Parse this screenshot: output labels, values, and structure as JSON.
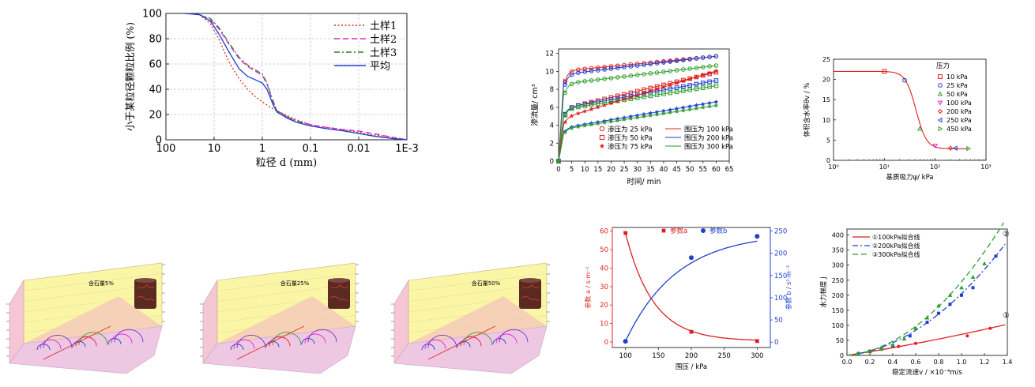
{
  "chart_data": [
    {
      "id": "psd",
      "type": "line",
      "xlabel": "粒径 d (mm)",
      "ylabel": "小于某粒径颗粒比例 (%)",
      "xscale": "log-reversed",
      "xticks": [
        "100",
        "10",
        "1",
        "0.1",
        "0.01",
        "1E-3"
      ],
      "yticks": [
        "0",
        "20",
        "40",
        "60",
        "80",
        "100"
      ],
      "ylim": [
        0,
        100
      ],
      "xlim": [
        100,
        0.001
      ],
      "grid": true,
      "legend_position": "top-right",
      "series": [
        {
          "name": "土样1",
          "style": "dot",
          "color": "#e0301e",
          "x": [
            40,
            20,
            12,
            8,
            5,
            3,
            2,
            1.5,
            1,
            0.7,
            0.5,
            0.3,
            0.2,
            0.1,
            0.05,
            0.02,
            0.01,
            0.005,
            0.002,
            0.001
          ],
          "y": [
            100,
            99,
            92,
            80,
            62,
            48,
            40,
            35,
            30,
            26,
            23,
            19,
            16,
            12,
            10,
            8,
            6,
            4,
            2,
            0
          ]
        },
        {
          "name": "土样2",
          "style": "dash",
          "color": "#e020d8",
          "x": [
            40,
            20,
            12,
            8,
            5,
            3,
            2,
            1.5,
            1,
            0.8,
            0.6,
            0.5,
            0.3,
            0.2,
            0.1,
            0.05,
            0.02,
            0.01,
            0.005,
            0.002,
            0.001
          ],
          "y": [
            100,
            99,
            95,
            88,
            76,
            64,
            58,
            55,
            51,
            44,
            30,
            23,
            18,
            15,
            12,
            10,
            8,
            7,
            5,
            2,
            0
          ]
        },
        {
          "name": "土样3",
          "style": "dashdot",
          "color": "#2e7d32",
          "x": [
            40,
            20,
            12,
            8,
            5,
            3,
            2,
            1.5,
            1,
            0.8,
            0.6,
            0.5,
            0.3,
            0.2,
            0.1,
            0.05,
            0.02,
            0.01,
            0.005,
            0.002,
            0.001
          ],
          "y": [
            100,
            99,
            96,
            89,
            77,
            65,
            59,
            56,
            52,
            45,
            31,
            23,
            18,
            15,
            11,
            9,
            7,
            5,
            3,
            1,
            0
          ]
        },
        {
          "name": "平均",
          "style": "solid",
          "color": "#1f3fd0",
          "x": [
            40,
            20,
            12,
            8,
            5,
            3,
            2,
            1.5,
            1,
            0.8,
            0.6,
            0.5,
            0.3,
            0.2,
            0.1,
            0.05,
            0.02,
            0.01,
            0.005,
            0.002,
            0.001
          ],
          "y": [
            100,
            99,
            94,
            84,
            70,
            56,
            50,
            48,
            45,
            40,
            28,
            22,
            17,
            14,
            11,
            9,
            7,
            5,
            3,
            1,
            0
          ]
        }
      ]
    },
    {
      "id": "seepage",
      "type": "scatter",
      "xlabel": "时间/ min",
      "ylabel": "渗流量/ cm³",
      "xticks": [
        0,
        5,
        10,
        15,
        20,
        25,
        30,
        35,
        40,
        45,
        50,
        55,
        60,
        65
      ],
      "yticks": [
        0,
        2,
        4,
        6,
        8,
        10,
        12
      ],
      "xlim": [
        0,
        65
      ],
      "ylim": [
        0,
        12.5
      ],
      "legend_position": "bottom-right",
      "legend_markers": [
        "渗压为 25 kPa",
        "渗压为 50 kPa",
        "渗压为 75 kPa"
      ],
      "legend_lines": [
        "围压为 100 kPa",
        "围压为 200 kPa",
        "围压为 300 kPa"
      ],
      "series": [
        {
          "color": "#e02020",
          "marker": "circle",
          "a": 9.6,
          "b": 0.4,
          "c": 0.028
        },
        {
          "color": "#1f3fd0",
          "marker": "circle",
          "a": 9.3,
          "b": 0.3,
          "c": 0.035
        },
        {
          "color": "#2e9e2e",
          "marker": "circle",
          "a": 8.2,
          "b": 0.35,
          "c": 0.035
        },
        {
          "color": "#e02020",
          "marker": "square",
          "a": 5.5,
          "b": 0.2,
          "c": 0.07
        },
        {
          "color": "#1f3fd0",
          "marker": "square",
          "a": 5.6,
          "b": 0.2,
          "c": 0.053
        },
        {
          "color": "#2e9e2e",
          "marker": "square",
          "a": 5.5,
          "b": 0.2,
          "c": 0.045
        },
        {
          "color": "#e02020",
          "marker": "star",
          "a": 4.4,
          "b": 0.25,
          "c": 0.09
        },
        {
          "color": "#1f3fd0",
          "marker": "star",
          "a": 3.4,
          "b": 0.2,
          "c": 0.05
        },
        {
          "color": "#2e9e2e",
          "marker": "star",
          "a": 3.3,
          "b": 0.2,
          "c": 0.045
        }
      ]
    },
    {
      "id": "swcc",
      "type": "scatter",
      "xlabel": "基质吸力ψ/ kPa",
      "ylabel": "体积含水率θv / %",
      "xscale": "log",
      "xticks": [
        "10⁰",
        "10¹",
        "10²",
        "10³"
      ],
      "yticks": [
        0,
        5,
        10,
        15,
        20,
        25
      ],
      "xlim": [
        1,
        1000
      ],
      "ylim": [
        0,
        25
      ],
      "legend_title": "压力",
      "legend_position": "right",
      "points": [
        {
          "label": "10 kPa",
          "x": 10,
          "y": 22,
          "marker": "square",
          "color": "#e02020"
        },
        {
          "label": "25 kPa",
          "x": 25,
          "y": 19.8,
          "marker": "circle",
          "color": "#1f3fd0"
        },
        {
          "label": "50 kPa",
          "x": 50,
          "y": 7.8,
          "marker": "triangle-up",
          "color": "#2e9e2e"
        },
        {
          "label": "100 kPa",
          "x": 100,
          "y": 3.6,
          "marker": "triangle-down",
          "color": "#e020d8"
        },
        {
          "label": "200 kPa",
          "x": 200,
          "y": 3.0,
          "marker": "diamond",
          "color": "#e02020"
        },
        {
          "label": "250 kPa",
          "x": 250,
          "y": 3.0,
          "marker": "triangle-left",
          "color": "#1f3fd0"
        },
        {
          "label": "450 kPa",
          "x": 450,
          "y": 2.9,
          "marker": "triangle-right",
          "color": "#2e9e2e"
        }
      ]
    },
    {
      "id": "mohr3d",
      "type": "other",
      "panels": [
        {
          "label": "含石量5%"
        },
        {
          "label": "含石量25%"
        },
        {
          "label": "含石量50%"
        }
      ]
    },
    {
      "id": "params",
      "type": "line",
      "xlabel": "围压 / kPa",
      "ylabel_left": "参数 a / s·m⁻¹",
      "ylabel_right": "参数 b / s²·m⁻²",
      "xticks": [
        100,
        150,
        200,
        250,
        300
      ],
      "yticks_left": [
        0,
        10,
        20,
        30,
        40,
        50,
        60
      ],
      "yticks_right": [
        0,
        50,
        100,
        150,
        200,
        250
      ],
      "xlim": [
        80,
        320
      ],
      "ylim_left": [
        -3,
        62
      ],
      "ylim_right": [
        -12,
        258
      ],
      "legend_position": "top",
      "series": [
        {
          "name": "参数a",
          "color": "#e02020",
          "marker": "square",
          "x": [
            100,
            200,
            300
          ],
          "y": [
            59,
            5.5,
            0.5
          ],
          "axis": "left"
        },
        {
          "name": "参数b",
          "color": "#1f3fd0",
          "marker": "circle",
          "x": [
            100,
            200,
            300
          ],
          "y": [
            2,
            190,
            238
          ],
          "axis": "right"
        }
      ]
    },
    {
      "id": "hydraulic",
      "type": "line",
      "xlabel": "稳定流速v / ×10⁻⁴m/s",
      "ylabel": "水力梯度 J",
      "xticks": [
        "0.0",
        "0.2",
        "0.4",
        "0.6",
        "0.8",
        "1.0",
        "1.2",
        "1.4"
      ],
      "yticks": [
        0,
        50,
        100,
        150,
        200,
        250,
        300,
        350,
        400
      ],
      "xlim": [
        0,
        1.4
      ],
      "ylim": [
        0,
        420
      ],
      "legend_position": "top-left",
      "series": [
        {
          "name": "①100kPa拟合线",
          "mark": "①",
          "color": "#e02020",
          "style": "solid",
          "A": 60,
          "B": 10,
          "px": [
            0.1,
            0.2,
            0.3,
            0.45,
            0.6,
            1.05,
            1.25
          ],
          "py": [
            5,
            12,
            20,
            30,
            40,
            65,
            90
          ]
        },
        {
          "name": "②200kPa拟合线",
          "mark": "②",
          "color": "#1f3fd0",
          "style": "dashdot",
          "A": 40,
          "B": 165,
          "px": [
            0.1,
            0.2,
            0.3,
            0.4,
            0.55,
            0.7,
            0.8,
            0.9,
            1.0,
            1.1,
            1.3
          ],
          "py": [
            6,
            14,
            22,
            32,
            65,
            110,
            140,
            170,
            200,
            225,
            330
          ]
        },
        {
          "name": "③300kPa拟合线",
          "mark": "③",
          "color": "#2e9e2e",
          "style": "dash",
          "A": 35,
          "B": 210,
          "px": [
            0.1,
            0.2,
            0.3,
            0.4,
            0.5,
            0.6,
            0.7,
            0.8,
            0.9,
            1.0,
            1.1,
            1.2
          ],
          "py": [
            6,
            13,
            22,
            35,
            55,
            90,
            125,
            165,
            200,
            225,
            260,
            305
          ]
        }
      ]
    }
  ]
}
